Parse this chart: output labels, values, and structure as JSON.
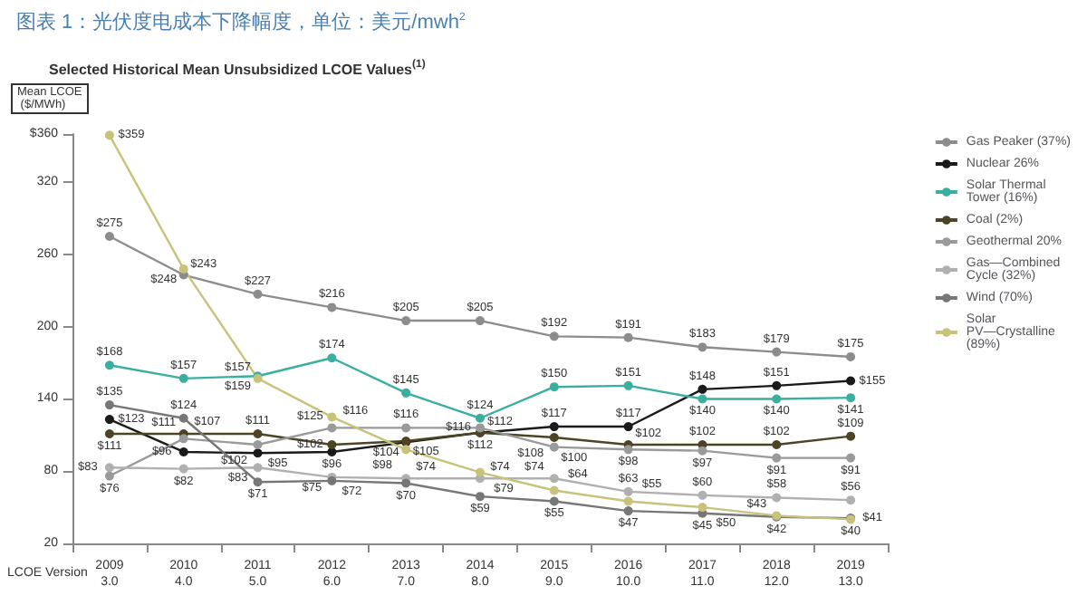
{
  "chart_data": {
    "type": "line",
    "title": "图表 1：光伏度电成本下降幅度，单位：美元/mwh$^{2}$",
    "subtitle": "Selected Historical Mean Unsubsidized LCOE Values$^{(1)}$",
    "ylabel": "Mean LCOE ($/MWh)",
    "xlabel": "LCOE Version",
    "categories": [
      "2009\n3.0",
      "2010\n4.0",
      "2011\n5.0",
      "2012\n6.0",
      "2013\n7.0",
      "2014\n8.0",
      "2015\n9.0",
      "2016\n10.0",
      "2017\n11.0",
      "2018\n12.0",
      "2019\n13.0"
    ],
    "ylim": [
      20,
      360
    ],
    "yticks": [
      20,
      80,
      140,
      200,
      260,
      320,
      {
        "value": 360,
        "label": "$360"
      }
    ],
    "grid": false,
    "legend": "right",
    "marker": "circle",
    "line_style": "solid",
    "series": [
      {
        "name": "Gas Peaker (37%)",
        "color": "#8c8c8c",
        "values": [
          275,
          243,
          227,
          216,
          205,
          205,
          192,
          191,
          183,
          179,
          175
        ],
        "value_labels": [
          "$275",
          "$243",
          "$227",
          "$216",
          "$205",
          "$205",
          "$192",
          "$191",
          "$183",
          "$179",
          "$175"
        ]
      },
      {
        "name": "Nuclear 26%",
        "color": "#1a1a1a",
        "values": [
          123,
          96,
          95,
          96,
          104,
          112,
          117,
          117,
          148,
          151,
          155
        ],
        "value_labels": [
          "$123",
          "$96",
          "$95",
          "$96",
          "$104",
          "$112",
          "$117",
          "$117",
          "$148",
          "$151",
          "$155"
        ]
      },
      {
        "name": "Solar Thermal Tower (16%)",
        "color": "#3aaf9f",
        "values": [
          168,
          157,
          159,
          174,
          145,
          124,
          150,
          151,
          140,
          140,
          141
        ],
        "value_labels": [
          "$168",
          "$157",
          "$159",
          "$174",
          "$145",
          "$124",
          "$150",
          "$151",
          "$140",
          "$140",
          "$141"
        ]
      },
      {
        "name": "Coal (2%)",
        "color": "#4d4426",
        "values": [
          111,
          111,
          111,
          102,
          105,
          112,
          108,
          102,
          102,
          102,
          109
        ],
        "value_labels": [
          "$111",
          "$111",
          "$111",
          "$102",
          "$105",
          "$112",
          "$108",
          "$102",
          "$102",
          "$102",
          "$109"
        ]
      },
      {
        "name": "Geothermal 20%",
        "color": "#9a9a9a",
        "values": [
          76,
          107,
          102,
          116,
          116,
          116,
          100,
          98,
          97,
          91,
          91
        ],
        "value_labels": [
          "$76",
          "$107",
          "$102",
          "$116",
          "$116",
          "$116",
          "$100",
          "$98",
          "$97",
          "$91",
          "$91"
        ]
      },
      {
        "name": "Gas—Combined Cycle (32%)",
        "color": "#b0b0b0",
        "values": [
          83,
          82,
          83,
          75,
          74,
          74,
          74,
          63,
          60,
          58,
          56
        ],
        "value_labels": [
          "$83",
          "$82",
          "$83",
          "$75",
          "$74",
          "$74",
          "$74",
          "$63",
          "$60",
          "$58",
          "$56"
        ]
      },
      {
        "name": "Wind (70%)",
        "color": "#777777",
        "values": [
          135,
          124,
          71,
          72,
          70,
          59,
          55,
          47,
          45,
          42,
          41
        ],
        "value_labels": [
          "$135",
          "$124",
          "$71",
          "$72",
          "$70",
          "$59",
          "$55",
          "$47",
          "$45",
          "$42",
          "$41"
        ]
      },
      {
        "name": "Solar PV—Crystalline (89%)",
        "color": "#c9c27a",
        "values": [
          359,
          248,
          157,
          125,
          98,
          79,
          64,
          55,
          50,
          43,
          40
        ],
        "value_labels": [
          "$359",
          "$248",
          "$157",
          "$125",
          "$98",
          "$79",
          "$64",
          "$55",
          "$50",
          "$43",
          "$40"
        ]
      }
    ]
  }
}
